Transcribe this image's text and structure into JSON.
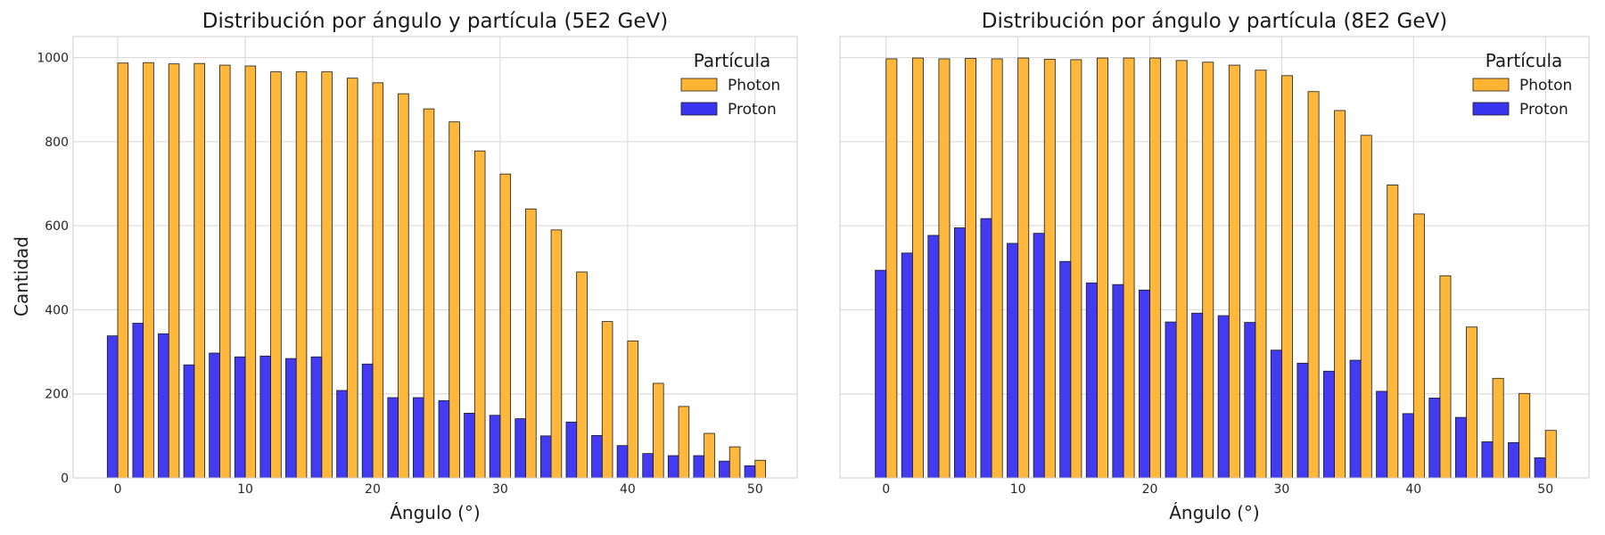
{
  "figure": {
    "ylabel": "Cantidad"
  },
  "chart_data": [
    {
      "type": "bar",
      "title": "Distribución por ángulo y partícula (5E2 GeV)",
      "xlabel": "Ángulo (°)",
      "ylabel": "Cantidad",
      "xlim": [
        -3.5,
        53.3
      ],
      "ylim": [
        0,
        1050
      ],
      "xticks": [
        0,
        10,
        20,
        30,
        40,
        50
      ],
      "yticks": [
        0,
        200,
        400,
        600,
        800,
        1000
      ],
      "grid": true,
      "legend": {
        "title": "Partícula",
        "position": "top-right"
      },
      "x": [
        0,
        2,
        4,
        6,
        8,
        10,
        12,
        14,
        16,
        18,
        20,
        22,
        24,
        26,
        28,
        30,
        32,
        34,
        36,
        38,
        40,
        42,
        44,
        46,
        48,
        50
      ],
      "series": [
        {
          "name": "Photon",
          "color": "#FFB432",
          "values": [
            987,
            988,
            985,
            986,
            982,
            980,
            966,
            966,
            966,
            951,
            940,
            914,
            878,
            847,
            778,
            723,
            640,
            590,
            490,
            372,
            326,
            225,
            170,
            106,
            74,
            42
          ]
        },
        {
          "name": "Proton",
          "color": "#3A33F0",
          "values": [
            338,
            368,
            343,
            269,
            297,
            288,
            290,
            284,
            288,
            208,
            271,
            191,
            191,
            184,
            154,
            149,
            141,
            100,
            133,
            101,
            77,
            58,
            53,
            53,
            40,
            29
          ]
        }
      ]
    },
    {
      "type": "bar",
      "title": "Distribución por ángulo y partícula (8E2 GeV)",
      "xlabel": "Ángulo (°)",
      "ylabel": "",
      "xlim": [
        -3.5,
        53.3
      ],
      "ylim": [
        0,
        1050
      ],
      "xticks": [
        0,
        10,
        20,
        30,
        40,
        50
      ],
      "yticks": [
        0,
        200,
        400,
        600,
        800,
        1000
      ],
      "grid": true,
      "legend": {
        "title": "Partícula",
        "position": "top-right"
      },
      "x": [
        0,
        2,
        4,
        6,
        8,
        10,
        12,
        14,
        16,
        18,
        20,
        22,
        24,
        26,
        28,
        30,
        32,
        34,
        36,
        38,
        40,
        42,
        44,
        46,
        48,
        50
      ],
      "series": [
        {
          "name": "Photon",
          "color": "#FFB432",
          "values": [
            997,
            999,
            997,
            998,
            997,
            999,
            996,
            995,
            999,
            999,
            999,
            993,
            989,
            982,
            970,
            957,
            919,
            874,
            815,
            697,
            628,
            481,
            359,
            237,
            201,
            113
          ]
        },
        {
          "name": "Proton",
          "color": "#3A33F0",
          "values": [
            494,
            535,
            577,
            595,
            617,
            558,
            582,
            515,
            464,
            460,
            447,
            371,
            392,
            386,
            370,
            304,
            273,
            254,
            280,
            206,
            153,
            190,
            144,
            86,
            84,
            48
          ]
        }
      ]
    }
  ]
}
